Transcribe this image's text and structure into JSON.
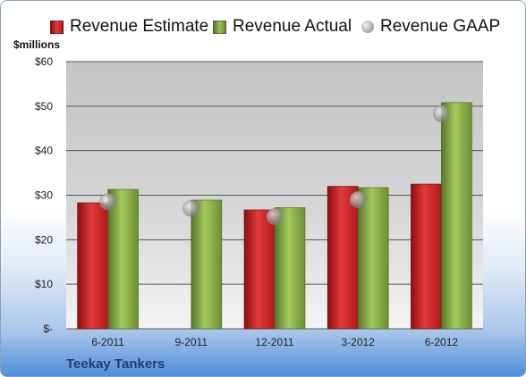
{
  "chart_data": {
    "type": "bar",
    "company": "Teekay Tankers",
    "units_label": "$millions",
    "categories": [
      "6-2011",
      "9-2011",
      "12-2011",
      "3-2012",
      "6-2012"
    ],
    "series": [
      {
        "name": "Revenue Estimate",
        "kind": "bar",
        "color": "#cc2222",
        "values": [
          28.3,
          null,
          26.7,
          32.0,
          32.5
        ]
      },
      {
        "name": "Revenue Actual",
        "kind": "bar",
        "color": "#7fa03a",
        "values": [
          31.3,
          28.9,
          27.2,
          31.7,
          50.8
        ]
      },
      {
        "name": "Revenue GAAP",
        "kind": "marker",
        "color": "#a0a0a0",
        "values": [
          28.5,
          27.0,
          25.2,
          29.0,
          48.3
        ]
      }
    ],
    "ylim": [
      0,
      60
    ],
    "yticks": [
      0,
      10,
      20,
      30,
      40,
      50,
      60
    ],
    "ytick_labels": [
      "$-",
      "$10",
      "$20",
      "$30",
      "$40",
      "$50",
      "$60"
    ],
    "grid": true,
    "legend_position": "top"
  }
}
